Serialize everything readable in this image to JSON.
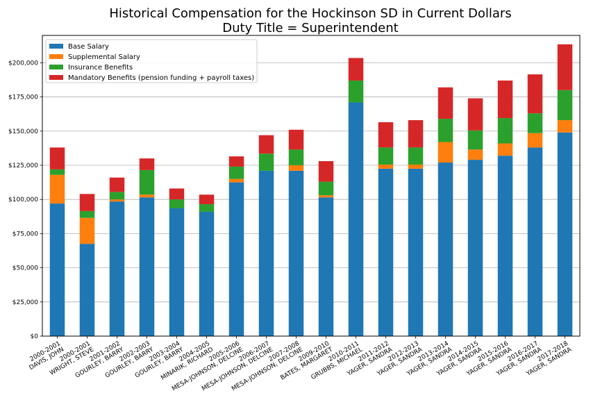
{
  "chart_data": {
    "type": "bar",
    "stacked": true,
    "title": "Historical Compensation for the Hockinson SD in Current Dollars",
    "subtitle": "Duty Title = Superintendent",
    "xlabel": "",
    "ylabel": "",
    "ylim": [
      0,
      220000
    ],
    "yticks": [
      0,
      25000,
      50000,
      75000,
      100000,
      125000,
      150000,
      175000,
      200000
    ],
    "ytick_labels": [
      "$0",
      "$25,000",
      "$50,000",
      "$75,000",
      "$100,000",
      "$125,000",
      "$150,000",
      "$175,000",
      "$200,000"
    ],
    "grid": "horizontal",
    "legend_position": "top-left",
    "categories": [
      [
        "2000-2001",
        "DAVIS, JOHN"
      ],
      [
        "2000-2001",
        "WRIGHT, STEVE"
      ],
      [
        "2001-2002",
        "GOURLEY, BARRY"
      ],
      [
        "2002-2003",
        "GOURLEY, BARRY"
      ],
      [
        "2003-2004",
        "GOURLEY, BARRY"
      ],
      [
        "2004-2005",
        "MINARIK, RICHARD"
      ],
      [
        "2005-2006",
        "MESA-JOHNSON, DELCINE"
      ],
      [
        "2006-2007",
        "MESA-JOHNSON, DELCINE"
      ],
      [
        "2007-2008",
        "MESA-JOHNSON, DELCINE"
      ],
      [
        "2009-2010",
        "BATES, MARGARET"
      ],
      [
        "2010-2011",
        "GRUBBS, MICHAEL"
      ],
      [
        "2011-2012",
        "YAGER, SANDRA"
      ],
      [
        "2012-2013",
        "YAGER, SANDRA"
      ],
      [
        "2013-2014",
        "YAGER, SANDRA"
      ],
      [
        "2014-2015",
        "YAGER, SANDRA"
      ],
      [
        "2015-2016",
        "YAGER, SANDRA"
      ],
      [
        "2016-2017",
        "YAGER, SANDRA"
      ],
      [
        "2017-2018",
        "YAGER, SANDRA"
      ]
    ],
    "series": [
      {
        "name": "Base Salary",
        "color": "#1f77b4",
        "values": [
          97000,
          67500,
          98500,
          101500,
          93500,
          91000,
          112500,
          121000,
          121000,
          101500,
          171000,
          122500,
          122500,
          127000,
          129000,
          132000,
          138000,
          149000
        ]
      },
      {
        "name": "Supplemental Salary",
        "color": "#ff7f0e",
        "values": [
          21000,
          19000,
          1500,
          2000,
          0,
          0,
          2500,
          0,
          4000,
          1500,
          0,
          3000,
          3000,
          15000,
          7500,
          9000,
          10500,
          9000
        ]
      },
      {
        "name": "Insurance Benefits",
        "color": "#2ca02c",
        "values": [
          4000,
          5000,
          5500,
          18000,
          6500,
          5500,
          9000,
          12500,
          11500,
          10000,
          16000,
          12500,
          12500,
          17000,
          14000,
          18500,
          14500,
          22000
        ]
      },
      {
        "name": "Mandatory Benefits (pension funding + payroll taxes)",
        "color": "#d62728",
        "values": [
          16000,
          12500,
          10500,
          8500,
          8000,
          7000,
          7500,
          13500,
          14500,
          15000,
          16500,
          18500,
          20000,
          23000,
          23500,
          27500,
          28500,
          33500
        ]
      }
    ]
  }
}
